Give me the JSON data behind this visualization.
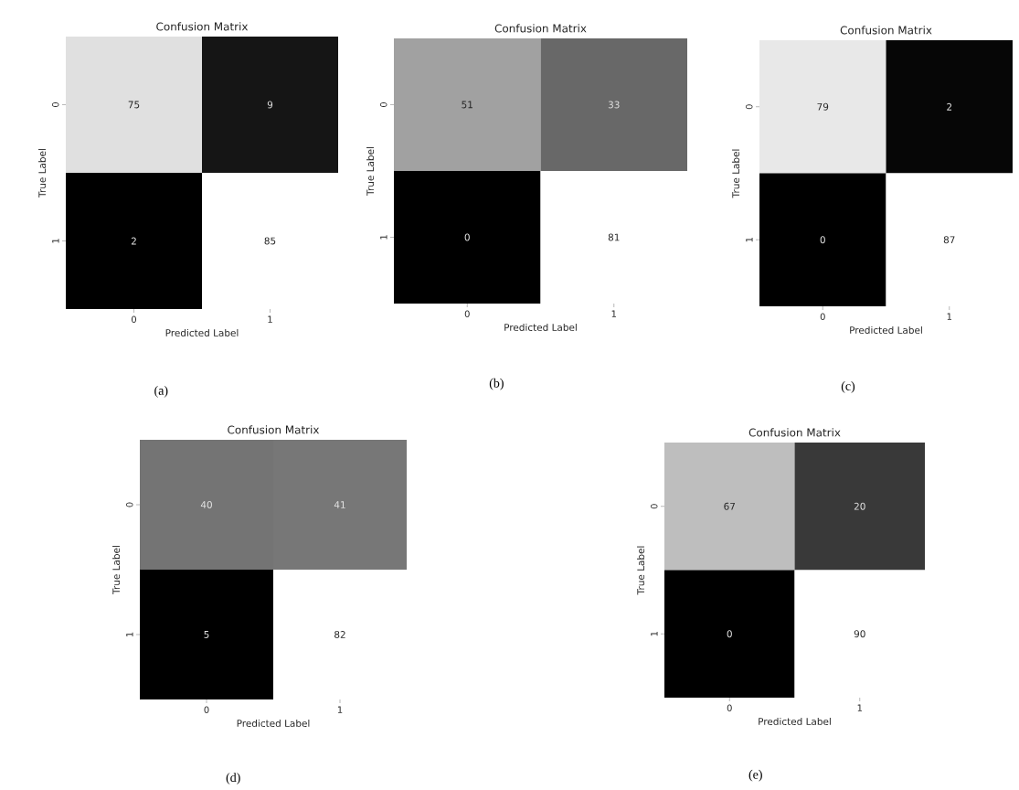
{
  "chart_data": [
    {
      "type": "heatmap",
      "title": "Confusion Matrix",
      "xlabel": "Predicted Label",
      "ylabel": "True Label",
      "categories": [
        "0",
        "1"
      ],
      "y_categories": [
        "0",
        "1"
      ],
      "cells": [
        [
          75,
          9
        ],
        [
          2,
          85
        ]
      ],
      "data_labels": true,
      "annotations": [
        "(a)"
      ]
    },
    {
      "type": "heatmap",
      "title": "Confusion Matrix",
      "xlabel": "Predicted Label",
      "ylabel": "True Label",
      "categories": [
        "0",
        "1"
      ],
      "y_categories": [
        "0",
        "1"
      ],
      "cells": [
        [
          51,
          33
        ],
        [
          0,
          81
        ]
      ],
      "data_labels": true,
      "annotations": [
        "(b)"
      ]
    },
    {
      "type": "heatmap",
      "title": "Confusion Matrix",
      "xlabel": "Predicted Label",
      "ylabel": "True Label",
      "categories": [
        "0",
        "1"
      ],
      "y_categories": [
        "0",
        "1"
      ],
      "cells": [
        [
          79,
          2
        ],
        [
          0,
          87
        ]
      ],
      "data_labels": true,
      "annotations": [
        "(c)"
      ]
    },
    {
      "type": "heatmap",
      "title": "Confusion Matrix",
      "xlabel": "Predicted Label",
      "ylabel": "True Label",
      "categories": [
        "0",
        "1"
      ],
      "y_categories": [
        "0",
        "1"
      ],
      "cells": [
        [
          40,
          41
        ],
        [
          5,
          82
        ]
      ],
      "data_labels": true,
      "annotations": [
        "(d)"
      ]
    },
    {
      "type": "heatmap",
      "title": "Confusion Matrix",
      "xlabel": "Predicted Label",
      "ylabel": "True Label",
      "categories": [
        "0",
        "1"
      ],
      "y_categories": [
        "0",
        "1"
      ],
      "cells": [
        [
          67,
          20
        ],
        [
          0,
          90
        ]
      ],
      "data_labels": true,
      "annotations": [
        "(e)"
      ]
    }
  ]
}
